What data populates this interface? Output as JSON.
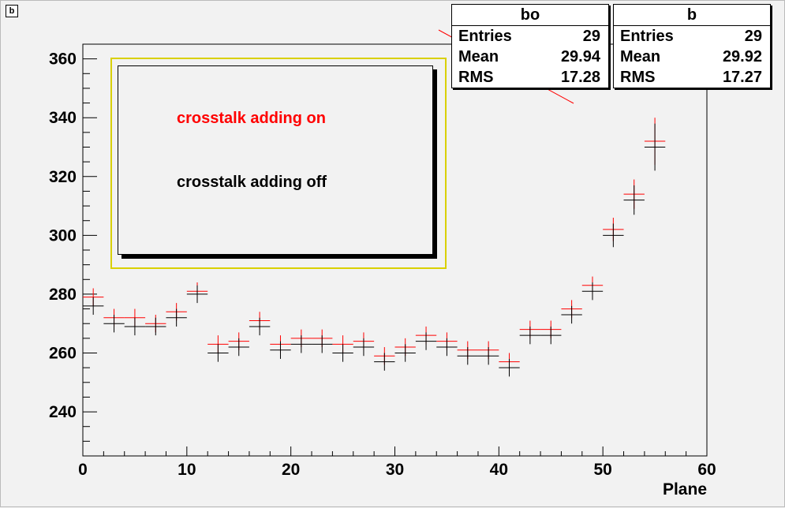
{
  "frame_label": "b",
  "stats_boxes": [
    {
      "title": "bo",
      "rows": [
        {
          "label": "Entries",
          "value": "29"
        },
        {
          "label": "Mean",
          "value": "29.94"
        },
        {
          "label": "RMS",
          "value": "17.28"
        }
      ]
    },
    {
      "title": "b",
      "rows": [
        {
          "label": "Entries",
          "value": "29"
        },
        {
          "label": "Mean",
          "value": "29.92"
        },
        {
          "label": "RMS",
          "value": "17.27"
        }
      ]
    }
  ],
  "legend": {
    "entries": [
      {
        "label": "crosstalk adding on",
        "color": "#ff0000"
      },
      {
        "label": "crosstalk adding off",
        "color": "#000000"
      }
    ]
  },
  "colors": {
    "red_series": "#ff0000",
    "black_series": "#000000",
    "legend_border": "#d9d000"
  },
  "chart_data": {
    "type": "scatter",
    "title": "",
    "xlabel": "Plane",
    "ylabel": "",
    "xlim": [
      0,
      60
    ],
    "ylim": [
      225,
      365
    ],
    "xticks": [
      0,
      10,
      20,
      30,
      40,
      50,
      60
    ],
    "yticks": [
      240,
      260,
      280,
      300,
      320,
      340,
      360
    ],
    "grid": false,
    "legend_position": "top-left",
    "x": [
      1,
      3,
      5,
      7,
      9,
      11,
      13,
      15,
      17,
      19,
      21,
      23,
      25,
      27,
      29,
      31,
      33,
      35,
      37,
      39,
      41,
      43,
      45,
      47,
      49,
      51,
      53,
      55
    ],
    "series": [
      {
        "name": "crosstalk adding on",
        "color": "#ff0000",
        "values": [
          279,
          272,
          272,
          270,
          274,
          281,
          263,
          264,
          271,
          263,
          265,
          265,
          263,
          264,
          259,
          262,
          266,
          264,
          261,
          261,
          257,
          268,
          268,
          275,
          283,
          302,
          314,
          332
        ],
        "errors": [
          3,
          3,
          3,
          3,
          3,
          3,
          3,
          3,
          3,
          3,
          3,
          3,
          3,
          3,
          3,
          3,
          3,
          3,
          3,
          3,
          3,
          3,
          3,
          3,
          3,
          4,
          5,
          8
        ]
      },
      {
        "name": "crosstalk adding off",
        "color": "#000000",
        "values": [
          276,
          270,
          269,
          269,
          272,
          280,
          260,
          262,
          269,
          261,
          263,
          263,
          260,
          262,
          257,
          260,
          264,
          262,
          259,
          259,
          255,
          266,
          266,
          273,
          281,
          300,
          312,
          330
        ],
        "errors": [
          3,
          3,
          3,
          3,
          3,
          3,
          3,
          3,
          3,
          3,
          3,
          3,
          3,
          3,
          3,
          3,
          3,
          3,
          3,
          3,
          3,
          3,
          3,
          3,
          3,
          4,
          5,
          8
        ]
      }
    ]
  }
}
